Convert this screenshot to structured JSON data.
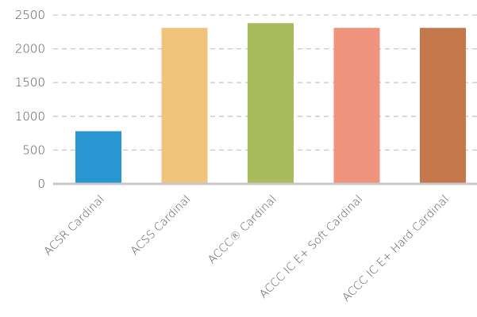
{
  "chart_data": {
    "type": "bar",
    "title": "",
    "xlabel": "",
    "ylabel": "",
    "categories": [
      "ACSR Cardinal",
      "ACSS Cardinal",
      "ACCC® Cardinal",
      "ACCC IC E+ Soft Cardinal",
      "ACCC IC E+ Hard Cardinal"
    ],
    "values": [
      780,
      2310,
      2380,
      2310,
      2310
    ],
    "colors": [
      "#2796d3",
      "#f0c47c",
      "#a8bc5e",
      "#f0937c",
      "#c4784c"
    ],
    "ylim": [
      0,
      2500
    ],
    "yticks": [
      0,
      500,
      1000,
      1500,
      2000,
      2500
    ],
    "grid": true,
    "grid_style": "dashed",
    "legend": "none"
  }
}
